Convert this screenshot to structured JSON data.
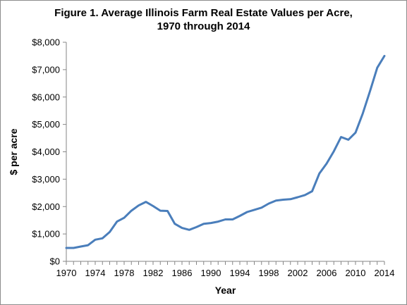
{
  "chart_data": {
    "type": "line",
    "title_line1": "Figure 1.  Average Illinois Farm Real Estate Values per Acre,",
    "title_line2": "1970 through 2014",
    "xlabel": "Year",
    "ylabel": "$ per acre",
    "xlim": [
      1970,
      2014
    ],
    "ylim": [
      0,
      8000
    ],
    "x_ticks": [
      1970,
      1974,
      1978,
      1982,
      1986,
      1990,
      1994,
      1998,
      2002,
      2006,
      2010,
      2014
    ],
    "y_ticks": [
      {
        "value": 0,
        "label": "$0"
      },
      {
        "value": 1000,
        "label": "$1,000"
      },
      {
        "value": 2000,
        "label": "$2,000"
      },
      {
        "value": 3000,
        "label": "$3,000"
      },
      {
        "value": 4000,
        "label": "$4,000"
      },
      {
        "value": 5000,
        "label": "$5,000"
      },
      {
        "value": 6000,
        "label": "$6,000"
      },
      {
        "value": 7000,
        "label": "$7,000"
      },
      {
        "value": 8000,
        "label": "$8,000"
      }
    ],
    "grid": false,
    "legend": "none",
    "line_color": "#4a7ebb",
    "series": [
      {
        "x": [
          1970,
          1971,
          1972,
          1973,
          1974,
          1975,
          1976,
          1977,
          1978,
          1979,
          1980,
          1981,
          1982,
          1983,
          1984,
          1985,
          1986,
          1987,
          1988,
          1989,
          1990,
          1991,
          1992,
          1993,
          1994,
          1995,
          1996,
          1997,
          1998,
          1999,
          2000,
          2001,
          2002,
          2003,
          2004,
          2005,
          2006,
          2007,
          2008,
          2009,
          2010,
          2011,
          2012,
          2013,
          2014
        ],
        "values": [
          490,
          490,
          540,
          590,
          790,
          840,
          1070,
          1450,
          1590,
          1850,
          2040,
          2170,
          2020,
          1850,
          1840,
          1370,
          1220,
          1150,
          1250,
          1370,
          1400,
          1450,
          1530,
          1530,
          1660,
          1800,
          1880,
          1960,
          2110,
          2220,
          2250,
          2270,
          2340,
          2420,
          2560,
          3210,
          3570,
          4020,
          4540,
          4440,
          4700,
          5400,
          6210,
          7070,
          7500
        ]
      }
    ]
  }
}
